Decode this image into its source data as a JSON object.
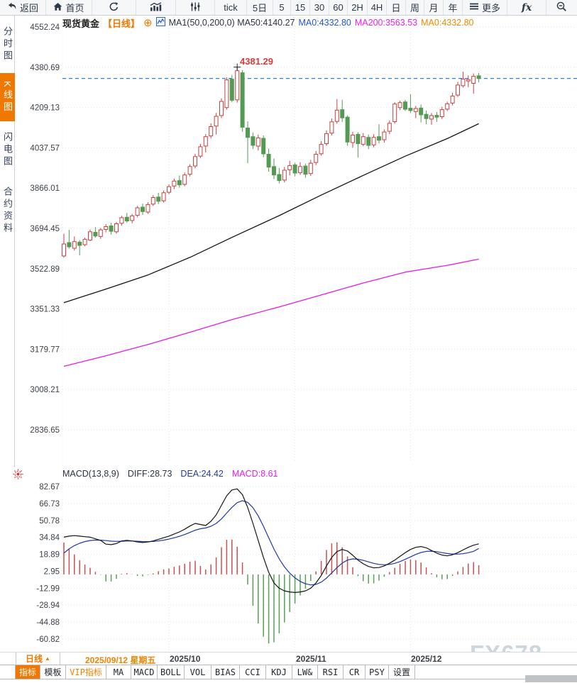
{
  "window": {
    "watermark": "FX678"
  },
  "toolbar": {
    "items": [
      {
        "label": "返回",
        "icon": "back-arrow"
      },
      {
        "label": "首页",
        "icon": "home"
      },
      {
        "icon": "refresh"
      },
      {
        "icon": "bar-chart"
      },
      {
        "icon": "sliders"
      },
      {
        "label": "tick"
      },
      {
        "label": "5日"
      },
      {
        "label": "5"
      },
      {
        "label": "15"
      },
      {
        "label": "30"
      },
      {
        "label": "60"
      },
      {
        "label": "2H"
      },
      {
        "label": "4H"
      },
      {
        "label": "日"
      },
      {
        "label": "周"
      },
      {
        "label": "月"
      },
      {
        "label": "年"
      },
      {
        "label": "更多",
        "icon": "hamburger-menu"
      },
      {
        "label": "fx",
        "icon": "function"
      },
      {
        "icon": "zoom-out"
      }
    ]
  },
  "sidebar": {
    "items": [
      {
        "label": "分时图",
        "active": false
      },
      {
        "label": "K线图",
        "active": true
      },
      {
        "label": "闪电图",
        "active": false
      },
      {
        "label": "合约资料",
        "active": false
      }
    ]
  },
  "chart_header": {
    "symbol": "现货黄金",
    "period": "【日线】",
    "ma_settings": "MA1(50,0,200,0) MA50:4140.27",
    "ma0_blue": "MA0:4332.80",
    "ma200": "MA200:3563.53",
    "ma0_orange": "MA0:4332.80"
  },
  "annotations": {
    "peak_price": "4381.29"
  },
  "macd_header": {
    "name": "MACD(13,8,9)",
    "diff": "DIFF:28.73",
    "dea": "DEA:24.42",
    "macd": "MACD:8.61"
  },
  "xaxis": {
    "period_label": "日线",
    "period_arrow": "▲",
    "start_date": "2025/09/12 星期五",
    "months": [
      {
        "label": "2025/10"
      },
      {
        "label": "2025/11"
      },
      {
        "label": "2025/12"
      }
    ]
  },
  "bottom_tabs": {
    "items": [
      {
        "label": "指标",
        "state": "active"
      },
      {
        "label": "模板"
      },
      {
        "label": "VIP指标",
        "state": "vip"
      },
      {
        "label": "MA"
      },
      {
        "label": "MACD"
      },
      {
        "label": "BOLL"
      },
      {
        "label": "VOL"
      },
      {
        "label": "BIAS"
      },
      {
        "label": "CCI"
      },
      {
        "label": "KDJ"
      },
      {
        "label": "LW&"
      },
      {
        "label": "RSI"
      },
      {
        "label": "CR"
      },
      {
        "label": "PSY"
      },
      {
        "label": "设置"
      }
    ]
  },
  "colors": {
    "accent_orange": "#f07800",
    "candle_up": "#c9403f",
    "candle_down": "#549a54",
    "ma50": "#151515",
    "ma200": "#e61ae6",
    "diff_line": "#151515",
    "dea_line": "#2038a0",
    "hist_up": "#c75050",
    "hist_down": "#55a057",
    "dashed_price_line": "#2f80dd",
    "grid": "#e3e8ee",
    "axis_text": "#3b4149",
    "peak_text": "#d83a3a"
  },
  "chart_data": [
    {
      "type": "candlestick",
      "title": "现货黄金 日线",
      "y_ticks": [
        "4552.24",
        "4380.69",
        "4209.13",
        "4037.57",
        "3866.01",
        "3694.45",
        "3522.89",
        "3351.33",
        "3179.77",
        "3008.21",
        "2836.65"
      ],
      "x_labels": [
        "2025/10",
        "2025/11",
        "2025/12"
      ],
      "x_label_indices": [
        20,
        44,
        66
      ],
      "last_price": 4332.8,
      "peak": {
        "index": 33,
        "price": 4381.29
      },
      "candles": [
        [
          3577,
          3672,
          3570,
          3628
        ],
        [
          3634,
          3688,
          3608,
          3616
        ],
        [
          3610,
          3660,
          3600,
          3638
        ],
        [
          3636,
          3645,
          3580,
          3622
        ],
        [
          3625,
          3655,
          3618,
          3648
        ],
        [
          3645,
          3690,
          3640,
          3680
        ],
        [
          3678,
          3700,
          3655,
          3662
        ],
        [
          3660,
          3696,
          3650,
          3688
        ],
        [
          3690,
          3712,
          3678,
          3702
        ],
        [
          3705,
          3718,
          3668,
          3682
        ],
        [
          3680,
          3722,
          3672,
          3714
        ],
        [
          3716,
          3748,
          3706,
          3740
        ],
        [
          3742,
          3760,
          3718,
          3726
        ],
        [
          3728,
          3756,
          3716,
          3748
        ],
        [
          3750,
          3790,
          3742,
          3782
        ],
        [
          3785,
          3800,
          3752,
          3766
        ],
        [
          3764,
          3806,
          3756,
          3796
        ],
        [
          3798,
          3836,
          3790,
          3826
        ],
        [
          3828,
          3846,
          3798,
          3810
        ],
        [
          3812,
          3856,
          3804,
          3846
        ],
        [
          3848,
          3882,
          3840,
          3872
        ],
        [
          3875,
          3906,
          3862,
          3896
        ],
        [
          3898,
          3920,
          3868,
          3880
        ],
        [
          3882,
          3932,
          3874,
          3922
        ],
        [
          3925,
          3968,
          3916,
          3958
        ],
        [
          3960,
          4012,
          3950,
          4000
        ],
        [
          4002,
          4054,
          3994,
          4042
        ],
        [
          4045,
          4096,
          4018,
          4085
        ],
        [
          4088,
          4142,
          4078,
          4128
        ],
        [
          4130,
          4186,
          4094,
          4172
        ],
        [
          4175,
          4248,
          4164,
          4235
        ],
        [
          4209,
          4338,
          4200,
          4327
        ],
        [
          4330,
          4348,
          4232,
          4240
        ],
        [
          4242,
          4381.29,
          4230,
          4366
        ],
        [
          4357,
          4368,
          4106,
          4125
        ],
        [
          4122,
          4150,
          3972,
          4082
        ],
        [
          4085,
          4102,
          4032,
          4048
        ],
        [
          4045,
          4094,
          4026,
          4080
        ],
        [
          4078,
          4090,
          3998,
          4012
        ],
        [
          4010,
          4034,
          3936,
          3955
        ],
        [
          3958,
          3992,
          3904,
          3922
        ],
        [
          3924,
          3952,
          3886,
          3898
        ],
        [
          3900,
          3956,
          3890,
          3942
        ],
        [
          3944,
          3982,
          3920,
          3962
        ],
        [
          3965,
          3974,
          3916,
          3930
        ],
        [
          3932,
          3976,
          3922,
          3958
        ],
        [
          3960,
          3970,
          3910,
          3925
        ],
        [
          3928,
          3986,
          3918,
          3972
        ],
        [
          3975,
          4024,
          3964,
          4010
        ],
        [
          4012,
          4066,
          4004,
          4052
        ],
        [
          4055,
          4112,
          4046,
          4098
        ],
        [
          4100,
          4162,
          4090,
          4148
        ],
        [
          4150,
          4245,
          4140,
          4198
        ],
        [
          4200,
          4242,
          4148,
          4165
        ],
        [
          4168,
          4176,
          4046,
          4062
        ],
        [
          4060,
          4106,
          4038,
          4092
        ],
        [
          4095,
          4104,
          3996,
          4055
        ],
        [
          4052,
          4100,
          4044,
          4085
        ],
        [
          4082,
          4094,
          4032,
          4048
        ],
        [
          4050,
          4096,
          4040,
          4082
        ],
        [
          4085,
          4138,
          4056,
          4070
        ],
        [
          4072,
          4116,
          4060,
          4105
        ],
        [
          4108,
          4154,
          4096,
          4142
        ],
        [
          4149,
          4232,
          4140,
          4224
        ],
        [
          4209,
          4238,
          4198,
          4230
        ],
        [
          4233,
          4242,
          4194,
          4202
        ],
        [
          4206,
          4266,
          4186,
          4196
        ],
        [
          4192,
          4216,
          4164,
          4205
        ],
        [
          4207,
          4222,
          4146,
          4178
        ],
        [
          4180,
          4196,
          4138,
          4162
        ],
        [
          4160,
          4186,
          4136,
          4175
        ],
        [
          4176,
          4190,
          4148,
          4168
        ],
        [
          4170,
          4212,
          4160,
          4200
        ],
        [
          4202,
          4234,
          4194,
          4225
        ],
        [
          4228,
          4272,
          4218,
          4258
        ],
        [
          4262,
          4318,
          4254,
          4305
        ],
        [
          4302,
          4362,
          4294,
          4330
        ],
        [
          4322,
          4346,
          4296,
          4328
        ],
        [
          4312,
          4354,
          4268,
          4342
        ],
        [
          4344,
          4356,
          4316,
          4332.8
        ]
      ],
      "ma50_points": [
        [
          0,
          3378
        ],
        [
          8,
          3436
        ],
        [
          16,
          3496
        ],
        [
          24,
          3571
        ],
        [
          32,
          3656
        ],
        [
          41,
          3749
        ],
        [
          49,
          3836
        ],
        [
          57,
          3920
        ],
        [
          65,
          4002
        ],
        [
          73,
          4077
        ],
        [
          79,
          4140.27
        ]
      ],
      "ma200_points": [
        [
          0,
          3107
        ],
        [
          8,
          3152
        ],
        [
          16,
          3200
        ],
        [
          24,
          3252
        ],
        [
          32,
          3306
        ],
        [
          41,
          3360
        ],
        [
          49,
          3411
        ],
        [
          57,
          3462
        ],
        [
          65,
          3508
        ],
        [
          73,
          3537
        ],
        [
          79,
          3563.53
        ]
      ]
    },
    {
      "type": "macd",
      "params": "(13,8,9)",
      "y_ticks": [
        "82.67",
        "66.73",
        "50.78",
        "34.84",
        "18.89",
        "2.95",
        "-12.99",
        "-28.94",
        "-44.88",
        "-60.82"
      ],
      "histogram_rule": "2*(diff-dea)",
      "diff": [
        35,
        36,
        36.5,
        36,
        35.5,
        35,
        33.5,
        32,
        28.5,
        28,
        29,
        31.5,
        32,
        31.5,
        30.5,
        30,
        30.5,
        31.5,
        33,
        34.5,
        36,
        38,
        40,
        42.5,
        45.5,
        48,
        47,
        46,
        50,
        56,
        65,
        74,
        79.5,
        80.5,
        75,
        63,
        48,
        32,
        16,
        2,
        -8,
        -13,
        -15.5,
        -16.5,
        -17,
        -16.5,
        -15.5,
        -13,
        -8,
        -1,
        8,
        16,
        21.5,
        23.5,
        22,
        18,
        13.5,
        10,
        7.5,
        6.2,
        6.5,
        8,
        10.5,
        13.5,
        17,
        20.5,
        23.5,
        25.5,
        26.2,
        25,
        22.5,
        20,
        18.2,
        17.5,
        18.5,
        20.5,
        23,
        25.5,
        27.5,
        28.73
      ],
      "dea": [
        20,
        24,
        27.1,
        29.3,
        30.9,
        31.9,
        32.3,
        32.2,
        31.8,
        31.3,
        31.1,
        31.2,
        31.4,
        31.4,
        31.2,
        30.9,
        30.8,
        31,
        31.5,
        32.2,
        33.2,
        34.4,
        35.8,
        37.5,
        39.5,
        41.6,
        43,
        43.7,
        45.3,
        48,
        52.2,
        57.7,
        63.1,
        67.5,
        69.4,
        67.8,
        62.8,
        55.1,
        45.3,
        34.5,
        23.9,
        14.7,
        7.1,
        1.2,
        -3.3,
        -6.6,
        -8.8,
        -9.9,
        -9.4,
        -7.3,
        -3.5,
        1.4,
        6.4,
        10.7,
        13.5,
        14.6,
        14.3,
        13.2,
        11.8,
        10.4,
        9.4,
        9.1,
        9.4,
        10.4,
        12.1,
        14.2,
        16.5,
        18.8,
        20.6,
        21.7,
        21.9,
        21.4,
        20.5,
        19.7,
        19.2,
        19.1,
        19.5,
        20.4,
        21.7,
        24.42
      ]
    }
  ]
}
